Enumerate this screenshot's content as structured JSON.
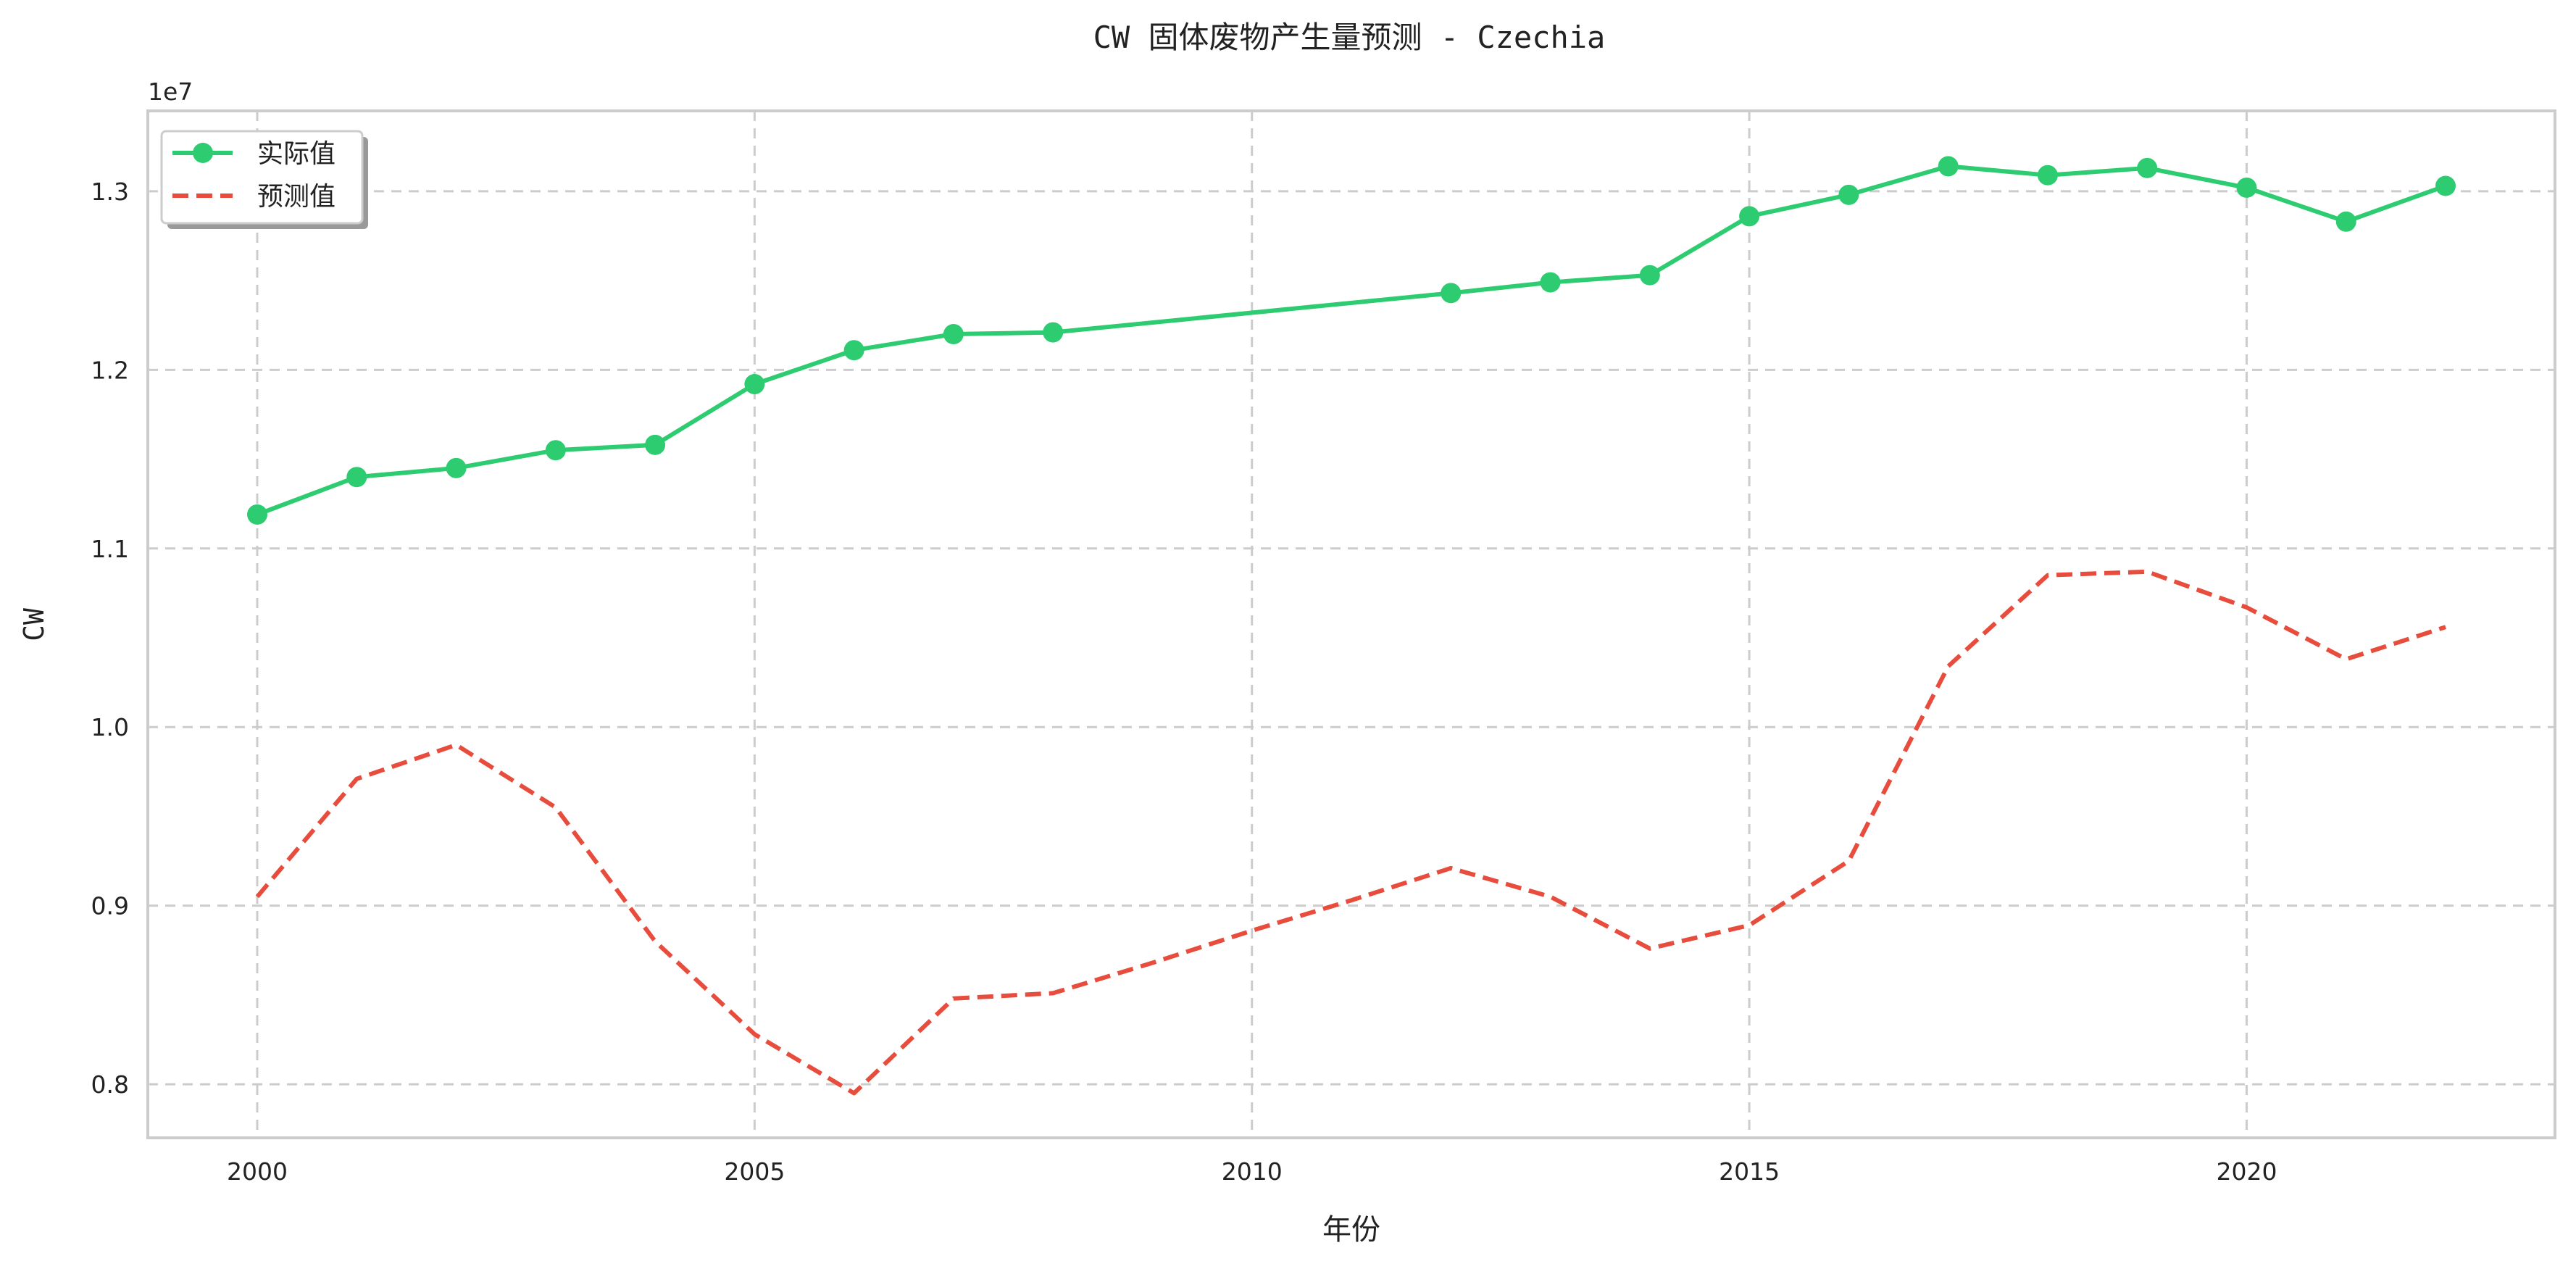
{
  "chart_data": {
    "type": "line",
    "title": "CW 固体废物产生量预测 - Czechia",
    "xlabel": "年份",
    "ylabel": "CW",
    "y_offset_label": "1e7",
    "xlim": [
      1998.9,
      2023.1
    ],
    "ylim": [
      7700000,
      13450000
    ],
    "x_ticks": [
      2000,
      2005,
      2010,
      2015,
      2020
    ],
    "y_ticks": [
      8000000,
      9000000,
      10000000,
      11000000,
      12000000,
      13000000
    ],
    "y_tick_labels": [
      "0.8",
      "0.9",
      "1.0",
      "1.1",
      "1.2",
      "1.3"
    ],
    "grid": true,
    "legend_position": "top-left",
    "series": [
      {
        "name": "实际值",
        "color": "#2ecc71",
        "style": "solid",
        "marker": "circle",
        "x": [
          2000,
          2001,
          2002,
          2003,
          2004,
          2005,
          2006,
          2007,
          2008,
          2012,
          2013,
          2014,
          2015,
          2016,
          2017,
          2018,
          2019,
          2020,
          2021,
          2022
        ],
        "y": [
          11190000,
          11400000,
          11450000,
          11550000,
          11580000,
          11920000,
          12110000,
          12200000,
          12210000,
          12430000,
          12490000,
          12530000,
          12860000,
          12980000,
          13140000,
          13090000,
          13130000,
          13020000,
          12830000,
          13030000
        ]
      },
      {
        "name": "预测值",
        "color": "#e74c3c",
        "style": "dashed",
        "marker": "none",
        "x": [
          2000,
          2001,
          2002,
          2003,
          2004,
          2005,
          2006,
          2007,
          2008,
          2009,
          2010,
          2011,
          2012,
          2013,
          2014,
          2015,
          2016,
          2017,
          2018,
          2019,
          2020,
          2021,
          2022
        ],
        "y": [
          9050000,
          9710000,
          9900000,
          9550000,
          8800000,
          8280000,
          7950000,
          8480000,
          8510000,
          8680000,
          8860000,
          9030000,
          9210000,
          9050000,
          8760000,
          8890000,
          9250000,
          10340000,
          10850000,
          10870000,
          10670000,
          10380000,
          10560000
        ]
      }
    ]
  }
}
